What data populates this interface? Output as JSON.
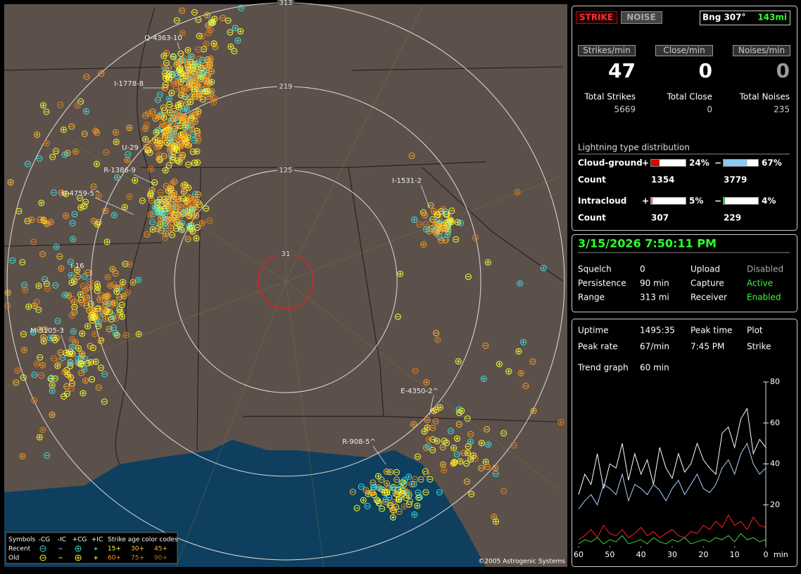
{
  "map": {
    "rings": [
      313,
      219,
      125,
      31
    ],
    "cluster_labels": [
      "Q-4363-10",
      "I-1778-8",
      "U-29",
      "R-1386-9",
      "U-4759-5^",
      "I-1531-2",
      "I-16",
      "M-5105-3",
      "E-4350-2^",
      "R-908-5^"
    ],
    "legend": {
      "symbols": "Symbols",
      "cols": [
        "-CG",
        "-IC",
        "+CG",
        "+IC"
      ],
      "age_title": "Strike age color codes",
      "rows": [
        "Recent",
        "Old"
      ],
      "recent_ages": [
        "15+",
        "30+",
        "45+"
      ],
      "old_ages": [
        "60+",
        "75+",
        "90+"
      ]
    },
    "copyright": "©2005 Astrogenic Systems"
  },
  "status": {
    "strike": "STRIKE",
    "noise": "NOISE",
    "bearing": "Bng 307°",
    "distance": "143mi"
  },
  "rates": [
    {
      "label": "Strikes/min",
      "value": 47,
      "total_label": "Total Strikes",
      "total": 5669
    },
    {
      "label": "Close/min",
      "value": 0,
      "total_label": "Total Close",
      "total": 0
    },
    {
      "label": "Noises/min",
      "value": 0,
      "total_label": "Total Noises",
      "total": 235
    }
  ],
  "distribution": {
    "title": "Lightning type distribution",
    "count_label": "Count",
    "rows": [
      {
        "name": "Cloud-ground",
        "pos_sign": "+",
        "pos": {
          "value": 24,
          "label": "24%"
        },
        "pos_color": "#e00000",
        "neg_sign": "−",
        "neg": {
          "value": 67,
          "label": "67%"
        },
        "neg_color": "#8ec8f0",
        "pos_count": 1354,
        "neg_count": 3779
      },
      {
        "name": "Intracloud",
        "pos_sign": "+",
        "pos": {
          "value": 5,
          "label": "5%"
        },
        "pos_color": "#e070a0",
        "neg_sign": "−",
        "neg": {
          "value": 4,
          "label": "4%"
        },
        "neg_color": "#40c040",
        "pos_count": 307,
        "neg_count": 229
      }
    ]
  },
  "datetime": "3/15/2026 7:50:11 PM",
  "settings": [
    [
      "Squelch",
      "0",
      "Upload",
      "Disabled"
    ],
    [
      "Persistence",
      "90 min",
      "Capture",
      "Active"
    ],
    [
      "Range",
      "313 mi",
      "Receiver",
      "Enabled"
    ]
  ],
  "stats": [
    [
      "Uptime",
      "1495:35",
      "Peak time",
      "Plot"
    ],
    [
      "Peak rate",
      "67/min",
      "7:45 PM",
      "Strike"
    ]
  ],
  "trend": {
    "label": "Trend graph",
    "span": "60 min",
    "x_unit": "min",
    "xlim": [
      60,
      0
    ],
    "xticks": [
      60,
      50,
      40,
      30,
      20,
      10,
      0
    ],
    "ylim": [
      0,
      80
    ],
    "yticks": [
      20,
      40,
      60,
      80
    ],
    "x": [
      60,
      58,
      56,
      54,
      52,
      50,
      48,
      46,
      44,
      42,
      40,
      38,
      36,
      34,
      32,
      30,
      28,
      26,
      24,
      22,
      20,
      18,
      16,
      14,
      12,
      10,
      8,
      6,
      4,
      2,
      0
    ],
    "series": [
      {
        "color": "#ffffff",
        "values": [
          25,
          35,
          30,
          45,
          28,
          40,
          38,
          50,
          32,
          45,
          35,
          42,
          30,
          48,
          38,
          33,
          45,
          36,
          40,
          50,
          42,
          38,
          35,
          55,
          58,
          48,
          62,
          67,
          45,
          52,
          48
        ]
      },
      {
        "color": "#a8d0ff",
        "values": [
          18,
          22,
          25,
          20,
          30,
          28,
          25,
          35,
          22,
          30,
          28,
          25,
          30,
          27,
          22,
          28,
          32,
          25,
          30,
          35,
          28,
          26,
          30,
          38,
          42,
          35,
          45,
          50,
          40,
          35,
          38
        ]
      },
      {
        "color": "#ff2020",
        "values": [
          3,
          5,
          8,
          4,
          10,
          6,
          5,
          8,
          4,
          6,
          9,
          5,
          7,
          4,
          6,
          8,
          5,
          4,
          7,
          6,
          10,
          8,
          12,
          9,
          15,
          10,
          12,
          8,
          14,
          10,
          9
        ]
      },
      {
        "color": "#40d040",
        "values": [
          1,
          3,
          2,
          4,
          1,
          3,
          2,
          5,
          1,
          2,
          3,
          1,
          4,
          2,
          1,
          3,
          2,
          4,
          1,
          2,
          3,
          2,
          4,
          3,
          5,
          2,
          6,
          3,
          4,
          2,
          3
        ]
      }
    ]
  }
}
